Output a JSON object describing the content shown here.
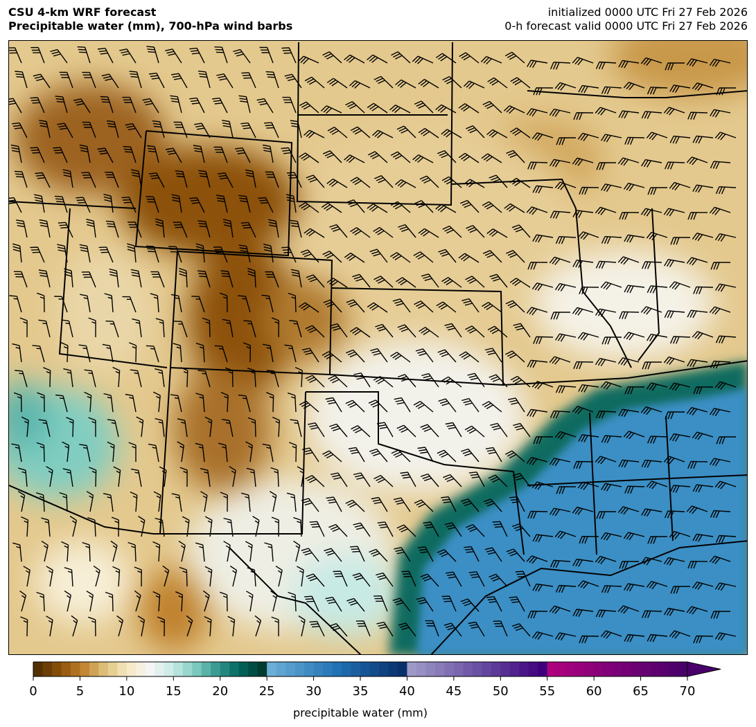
{
  "header": {
    "title_line1": "CSU 4-km WRF forecast",
    "title_line2": "Precipitable water (mm), 700-hPa wind barbs",
    "init_line": "initialized 0000 UTC Fri 27 Feb 2026",
    "valid_line": "0-h forecast valid 0000 UTC Fri 27 Feb 2026"
  },
  "map": {
    "field": "precipitable water",
    "overlay": "700-hPa wind barbs",
    "colors": {
      "dry_brown": "#8c510a",
      "tan": "#dfc27d",
      "neutral": "#f5f5f5",
      "teal": "#35978f",
      "blue": "#2171b5"
    }
  },
  "colorbar": {
    "label": "precipitable water (mm)",
    "ticks": [
      "0",
      "5",
      "10",
      "15",
      "20",
      "25",
      "30",
      "35",
      "40",
      "45",
      "50",
      "55",
      "60",
      "65",
      "70"
    ],
    "range": [
      0,
      70
    ],
    "extend": "max",
    "segments": [
      {
        "from": 0,
        "to": 25,
        "colors": [
          "#543005",
          "#8c510a",
          "#bf812d",
          "#dfc27d",
          "#f6e8c3",
          "#f5f5f5",
          "#c7eae5",
          "#80cdc1",
          "#35978f",
          "#01665e",
          "#003c30"
        ]
      },
      {
        "from": 25,
        "to": 40,
        "colors": [
          "#6baed6",
          "#2171b5",
          "#08306b"
        ]
      },
      {
        "from": 40,
        "to": 55,
        "colors": [
          "#9e9ac8",
          "#6a51a3",
          "#3f007d"
        ]
      },
      {
        "from": 55,
        "to": 70,
        "colors": [
          "#ae017e",
          "#7a0177",
          "#49006a"
        ]
      }
    ]
  }
}
